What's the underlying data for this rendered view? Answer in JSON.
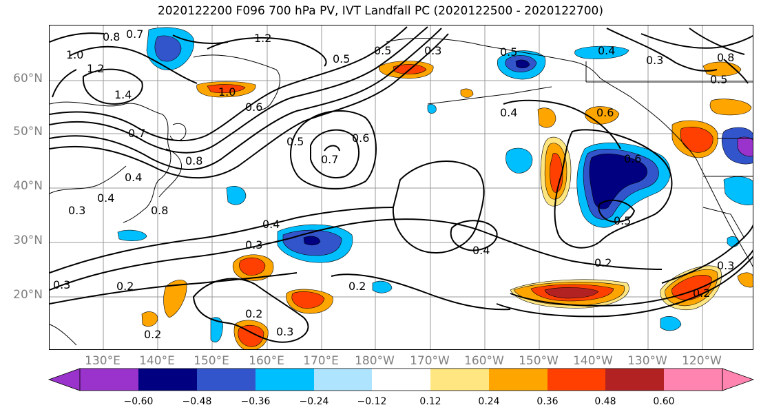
{
  "title": "2020122200 F096 700 hPa PV, IVT Landfall PC (2020122500 - 2020122700)",
  "lat_labels": [
    "60°N",
    "50°N",
    "40°N",
    "30°N",
    "20°N"
  ],
  "lon_labels": [
    "130°E",
    "140°E",
    "150°E",
    "160°E",
    "170°E",
    "180°W",
    "170°W",
    "160°W",
    "150°W",
    "140°W",
    "130°W",
    "120°W"
  ],
  "colorbar": {
    "colors": [
      "#9a33cc",
      "#000080",
      "#3355cc",
      "#00bfff",
      "#afe4ff",
      "#ffffff",
      "#ffffff",
      "#ffe680",
      "#ffa500",
      "#ff4000",
      "#b22222",
      "#ff85b0"
    ],
    "tick_labels": [
      "−0.60",
      "−0.48",
      "−0.36",
      "−0.24",
      "−0.12",
      "0.12",
      "0.24",
      "0.36",
      "0.48",
      "0.60"
    ]
  },
  "contour_labels": [
    "0.8",
    "0.7",
    "1.2",
    "1.0",
    "1.2",
    "1.4",
    "1.0",
    "0.5",
    "0.5",
    "0.3",
    "0.5",
    "0.4",
    "0.3",
    "0.6",
    "0.4",
    "0.6",
    "0.5",
    "0.6",
    "0.7",
    "0.7",
    "0.4",
    "0.4",
    "0.3",
    "0.8",
    "0.8",
    "0.3",
    "0.4",
    "0.3",
    "0.2",
    "0.2",
    "0.2",
    "0.3",
    "0.2",
    "0.4",
    "0.5",
    "0.2",
    "0.2",
    "0.3",
    "0.8",
    "0.5",
    "0.6"
  ]
}
